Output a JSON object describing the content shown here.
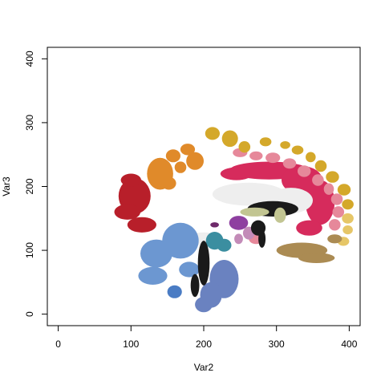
{
  "chart_data": {
    "type": "scatter",
    "title": "",
    "xlabel": "Var2",
    "ylabel": "Var3",
    "xlim": [
      -15,
      415
    ],
    "ylim": [
      -18,
      418
    ],
    "xticks": [
      0,
      100,
      200,
      300,
      400
    ],
    "yticks": [
      0,
      100,
      200,
      300,
      400
    ],
    "xtick_labels": [
      "0",
      "100",
      "200",
      "300",
      "400"
    ],
    "ytick_labels": [
      "0",
      "100",
      "200",
      "300",
      "400"
    ],
    "grid": false,
    "legend": "none",
    "series": [
      {
        "color": "#D62B5C",
        "blobs": [
          {
            "x": 290,
            "y": 225,
            "rx": 55,
            "ry": 14
          },
          {
            "x": 335,
            "y": 210,
            "rx": 28,
            "ry": 22
          },
          {
            "x": 360,
            "y": 175,
            "rx": 20,
            "ry": 35
          },
          {
            "x": 345,
            "y": 135,
            "rx": 18,
            "ry": 12
          },
          {
            "x": 245,
            "y": 220,
            "rx": 22,
            "ry": 10
          }
        ]
      },
      {
        "color": "#E6889A",
        "blobs": [
          {
            "x": 250,
            "y": 253,
            "rx": 10,
            "ry": 7
          },
          {
            "x": 272,
            "y": 248,
            "rx": 9,
            "ry": 7
          },
          {
            "x": 295,
            "y": 245,
            "rx": 10,
            "ry": 8
          },
          {
            "x": 318,
            "y": 236,
            "rx": 9,
            "ry": 8
          },
          {
            "x": 338,
            "y": 224,
            "rx": 9,
            "ry": 9
          },
          {
            "x": 357,
            "y": 210,
            "rx": 8,
            "ry": 9
          },
          {
            "x": 372,
            "y": 196,
            "rx": 7,
            "ry": 9
          },
          {
            "x": 383,
            "y": 180,
            "rx": 8,
            "ry": 9
          },
          {
            "x": 385,
            "y": 160,
            "rx": 8,
            "ry": 9
          },
          {
            "x": 380,
            "y": 140,
            "rx": 8,
            "ry": 9
          },
          {
            "x": 272,
            "y": 118,
            "rx": 10,
            "ry": 8
          }
        ]
      },
      {
        "color": "#D4A82A",
        "blobs": [
          {
            "x": 212,
            "y": 283,
            "rx": 10,
            "ry": 10
          },
          {
            "x": 236,
            "y": 275,
            "rx": 11,
            "ry": 13
          },
          {
            "x": 256,
            "y": 262,
            "rx": 8,
            "ry": 9
          },
          {
            "x": 285,
            "y": 270,
            "rx": 8,
            "ry": 7
          },
          {
            "x": 312,
            "y": 265,
            "rx": 7,
            "ry": 6
          },
          {
            "x": 329,
            "y": 257,
            "rx": 8,
            "ry": 7
          },
          {
            "x": 347,
            "y": 246,
            "rx": 7,
            "ry": 8
          },
          {
            "x": 361,
            "y": 232,
            "rx": 8,
            "ry": 9
          },
          {
            "x": 377,
            "y": 215,
            "rx": 9,
            "ry": 9
          },
          {
            "x": 393,
            "y": 195,
            "rx": 9,
            "ry": 9
          },
          {
            "x": 398,
            "y": 172,
            "rx": 8,
            "ry": 8
          }
        ]
      },
      {
        "color": "#E6C667",
        "blobs": [
          {
            "x": 398,
            "y": 150,
            "rx": 8,
            "ry": 8
          },
          {
            "x": 398,
            "y": 132,
            "rx": 7,
            "ry": 7
          },
          {
            "x": 392,
            "y": 114,
            "rx": 8,
            "ry": 7
          }
        ]
      },
      {
        "color": "#E08A2A",
        "blobs": [
          {
            "x": 140,
            "y": 220,
            "rx": 18,
            "ry": 25
          },
          {
            "x": 158,
            "y": 248,
            "rx": 10,
            "ry": 10
          },
          {
            "x": 178,
            "y": 258,
            "rx": 10,
            "ry": 9
          },
          {
            "x": 188,
            "y": 240,
            "rx": 12,
            "ry": 14
          },
          {
            "x": 168,
            "y": 230,
            "rx": 8,
            "ry": 9
          },
          {
            "x": 152,
            "y": 205,
            "rx": 10,
            "ry": 10
          }
        ]
      },
      {
        "color": "#B81F2A",
        "blobs": [
          {
            "x": 105,
            "y": 185,
            "rx": 22,
            "ry": 28
          },
          {
            "x": 95,
            "y": 160,
            "rx": 18,
            "ry": 12
          },
          {
            "x": 115,
            "y": 140,
            "rx": 20,
            "ry": 12
          },
          {
            "x": 100,
            "y": 210,
            "rx": 14,
            "ry": 10
          }
        ]
      },
      {
        "color": "#EEEEEE",
        "blobs": [
          {
            "x": 262,
            "y": 188,
            "rx": 50,
            "ry": 18
          },
          {
            "x": 320,
            "y": 178,
            "rx": 30,
            "ry": 20
          },
          {
            "x": 200,
            "y": 118,
            "rx": 22,
            "ry": 10
          }
        ]
      },
      {
        "color": "#6C97D1",
        "blobs": [
          {
            "x": 168,
            "y": 115,
            "rx": 25,
            "ry": 28
          },
          {
            "x": 135,
            "y": 95,
            "rx": 22,
            "ry": 22
          },
          {
            "x": 130,
            "y": 60,
            "rx": 20,
            "ry": 14
          },
          {
            "x": 180,
            "y": 70,
            "rx": 14,
            "ry": 12
          }
        ]
      },
      {
        "color": "#4A7CC4",
        "blobs": [
          {
            "x": 160,
            "y": 35,
            "rx": 10,
            "ry": 10
          }
        ]
      },
      {
        "color": "#6A82C0",
        "blobs": [
          {
            "x": 228,
            "y": 55,
            "rx": 20,
            "ry": 30
          },
          {
            "x": 210,
            "y": 30,
            "rx": 15,
            "ry": 20
          },
          {
            "x": 200,
            "y": 15,
            "rx": 12,
            "ry": 12
          }
        ]
      },
      {
        "color": "#3B8EA0",
        "blobs": [
          {
            "x": 215,
            "y": 115,
            "rx": 12,
            "ry": 14
          },
          {
            "x": 228,
            "y": 108,
            "rx": 10,
            "ry": 10
          }
        ]
      },
      {
        "color": "#8E3FA0",
        "blobs": [
          {
            "x": 248,
            "y": 143,
            "rx": 13,
            "ry": 11
          }
        ]
      },
      {
        "color": "#6E2A6A",
        "blobs": [
          {
            "x": 215,
            "y": 140,
            "rx": 6,
            "ry": 4
          }
        ]
      },
      {
        "color": "#C38BB8",
        "blobs": [
          {
            "x": 262,
            "y": 127,
            "rx": 8,
            "ry": 10
          },
          {
            "x": 248,
            "y": 118,
            "rx": 6,
            "ry": 8
          }
        ]
      },
      {
        "color": "#1A1A1A",
        "blobs": [
          {
            "x": 295,
            "y": 165,
            "rx": 35,
            "ry": 12
          },
          {
            "x": 200,
            "y": 80,
            "rx": 8,
            "ry": 35
          },
          {
            "x": 188,
            "y": 45,
            "rx": 6,
            "ry": 18
          },
          {
            "x": 275,
            "y": 135,
            "rx": 10,
            "ry": 12
          },
          {
            "x": 280,
            "y": 118,
            "rx": 5,
            "ry": 14
          }
        ]
      },
      {
        "color": "#C2C592",
        "blobs": [
          {
            "x": 270,
            "y": 160,
            "rx": 20,
            "ry": 7
          },
          {
            "x": 305,
            "y": 155,
            "rx": 8,
            "ry": 12
          }
        ]
      },
      {
        "color": "#AB8B53",
        "blobs": [
          {
            "x": 335,
            "y": 100,
            "rx": 35,
            "ry": 12
          },
          {
            "x": 355,
            "y": 88,
            "rx": 25,
            "ry": 8
          },
          {
            "x": 380,
            "y": 118,
            "rx": 10,
            "ry": 7
          }
        ]
      }
    ]
  }
}
